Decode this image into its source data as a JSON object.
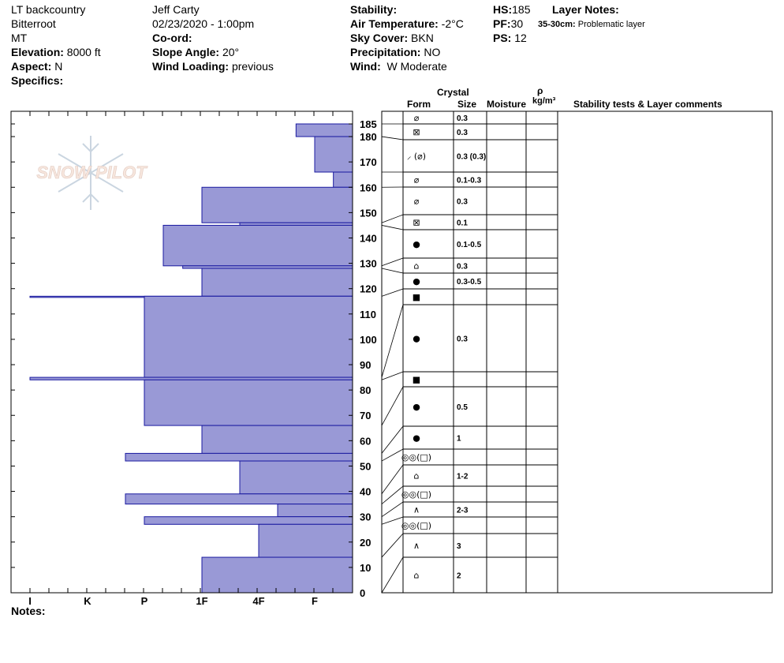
{
  "header": {
    "col1": [
      "LT backcountry",
      "Bitterroot",
      "MT"
    ],
    "elevation_label": "Elevation:",
    "elevation": "8000 ft",
    "aspect_label": "Aspect:",
    "aspect": "N",
    "specifics_label": "Specifics:",
    "observer": "Jeff Carty",
    "datetime": "02/23/2020 - 1:00pm",
    "coord_label": "Co-ord:",
    "slope_label": "Slope Angle:",
    "slope": "20°",
    "wind_loading_label": "Wind Loading:",
    "wind_loading": "previous",
    "stability_label": "Stability:",
    "air_temp_label": "Air Temperature:",
    "air_temp": "-2°C",
    "sky_label": "Sky Cover:",
    "sky": "BKN",
    "precip_label": "Precipitation:",
    "precip": "NO",
    "wind_label": "Wind:",
    "wind": "W Moderate",
    "hs_label": "HS:",
    "hs": "185",
    "pf_label": "PF:",
    "pf": "30",
    "ps_label": "PS:",
    "ps": "12",
    "layer_notes_label": "Layer Notes:",
    "layer_note_range": "35-30cm:",
    "layer_note_text": "Problematic layer"
  },
  "table_headers": {
    "crystal": "Crystal",
    "form": "Form",
    "size": "Size",
    "moisture": "Moisture",
    "rho": "ρ",
    "density_unit": "kg/m³",
    "stability": "Stability tests & Layer comments"
  },
  "logo_text": "SNOW PILOT",
  "notes_label": "Notes:",
  "chart_data": {
    "type": "bar",
    "x_axis_labels": [
      "I",
      "K",
      "P",
      "1F",
      "4F",
      "F"
    ],
    "y_ticks": [
      0,
      10,
      20,
      30,
      40,
      50,
      60,
      70,
      80,
      90,
      100,
      110,
      120,
      130,
      140,
      150,
      160,
      170,
      180,
      185
    ],
    "ylim": [
      0,
      185
    ],
    "bar_color": "#9999d6",
    "hardness_layers": [
      {
        "bottom": 180,
        "top": 185,
        "hardness": "F-"
      },
      {
        "bottom": 166,
        "top": 180,
        "hardness": "F"
      },
      {
        "bottom": 160,
        "top": 166,
        "hardness": "F+"
      },
      {
        "bottom": 146,
        "top": 160,
        "hardness": "1F"
      },
      {
        "bottom": 145,
        "top": 146,
        "hardness": "4F-"
      },
      {
        "bottom": 129,
        "top": 145,
        "hardness": "P+"
      },
      {
        "bottom": 128,
        "top": 129,
        "hardness": "1F-"
      },
      {
        "bottom": 117,
        "top": 128,
        "hardness": "1F"
      },
      {
        "bottom": 117,
        "top": 117,
        "hardness": "I"
      },
      {
        "bottom": 85,
        "top": 117,
        "hardness": "P"
      },
      {
        "bottom": 84,
        "top": 85,
        "hardness": "I"
      },
      {
        "bottom": 66,
        "top": 84,
        "hardness": "P"
      },
      {
        "bottom": 55,
        "top": 66,
        "hardness": "1F"
      },
      {
        "bottom": 52,
        "top": 55,
        "hardness": "P-"
      },
      {
        "bottom": 39,
        "top": 52,
        "hardness": "4F-"
      },
      {
        "bottom": 35,
        "top": 39,
        "hardness": "P-"
      },
      {
        "bottom": 30,
        "top": 35,
        "hardness": "4F+"
      },
      {
        "bottom": 27,
        "top": 30,
        "hardness": "P"
      },
      {
        "bottom": 14,
        "top": 27,
        "hardness": "4F"
      },
      {
        "bottom": 0,
        "top": 14,
        "hardness": "1F"
      }
    ],
    "crystal_rows": [
      {
        "form": "⌀",
        "size": "0.3"
      },
      {
        "form": "⊠",
        "size": "0.3"
      },
      {
        "form": "⸝ (⌀)",
        "size": "0.3 (0.3)"
      },
      {
        "form": "⌀",
        "size": "0.1-0.3"
      },
      {
        "form": "⌀",
        "size": "0.3"
      },
      {
        "form": "⊠",
        "size": "0.1"
      },
      {
        "form": "●",
        "size": "0.1-0.5"
      },
      {
        "form": "⌂",
        "size": "0.3"
      },
      {
        "form": "●",
        "size": "0.3-0.5"
      },
      {
        "form": "■",
        "size": ""
      },
      {
        "form": "●",
        "size": "0.3"
      },
      {
        "form": "■",
        "size": ""
      },
      {
        "form": "●",
        "size": "0.5"
      },
      {
        "form": "●",
        "size": "1"
      },
      {
        "form": "◎◎(□)",
        "size": ""
      },
      {
        "form": "⌂",
        "size": "1-2"
      },
      {
        "form": "◎◎(□)",
        "size": ""
      },
      {
        "form": "∧",
        "size": "2-3"
      },
      {
        "form": "◎◎(□)",
        "size": ""
      },
      {
        "form": "∧",
        "size": "3"
      },
      {
        "form": "⌂",
        "size": "2"
      }
    ]
  }
}
